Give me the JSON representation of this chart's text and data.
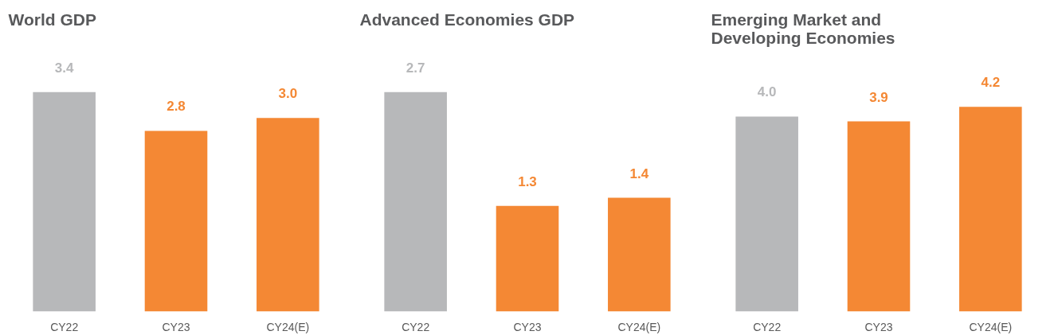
{
  "chart_data": [
    {
      "type": "bar",
      "title": "World GDP",
      "categories": [
        "CY22",
        "CY23",
        "CY24(E)"
      ],
      "values": [
        3.4,
        2.8,
        3.0
      ],
      "value_labels": [
        "3.4",
        "2.8",
        "3.0"
      ],
      "colors": [
        "#b7b8ba",
        "#f48834",
        "#f48834"
      ]
    },
    {
      "type": "bar",
      "title": "Advanced Economies GDP",
      "categories": [
        "CY22",
        "CY23",
        "CY24(E)"
      ],
      "values": [
        2.7,
        1.3,
        1.4
      ],
      "value_labels": [
        "2.7",
        "1.3",
        "1.4"
      ],
      "colors": [
        "#b7b8ba",
        "#f48834",
        "#f48834"
      ]
    },
    {
      "type": "bar",
      "title": "Emerging Market and Developing Economies",
      "categories": [
        "CY22",
        "CY23",
        "CY24(E)"
      ],
      "values": [
        4.0,
        3.9,
        4.2
      ],
      "value_labels": [
        "4.0",
        "3.9",
        "4.2"
      ],
      "colors": [
        "#b7b8ba",
        "#f48834",
        "#f48834"
      ]
    }
  ]
}
